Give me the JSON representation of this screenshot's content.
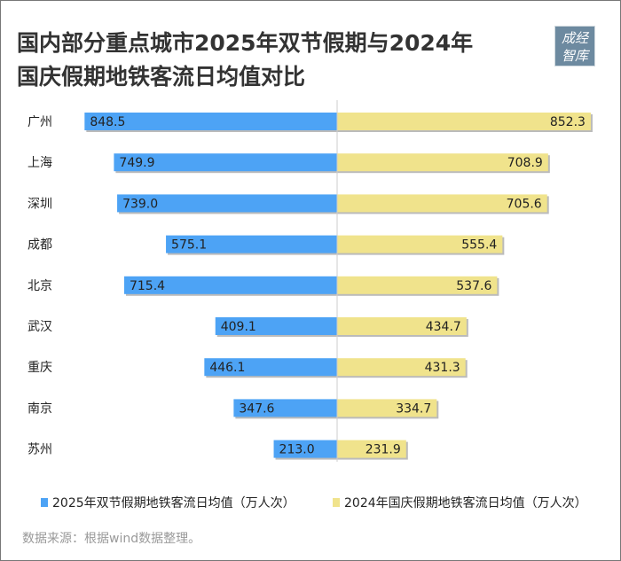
{
  "title_line1": "国内部分重点城市2025年双节假期与2024年",
  "title_line2": "国庆假期地铁客流日均值对比",
  "logo_text": "成经智库",
  "source": "数据来源：根据wind数据整理。",
  "chart_data": {
    "type": "bar",
    "orientation": "horizontal-diverging",
    "categories": [
      "广州",
      "上海",
      "深圳",
      "成都",
      "北京",
      "武汉",
      "重庆",
      "南京",
      "苏州"
    ],
    "series": [
      {
        "name": "2025年双节假期地铁客流日均值（万人次）",
        "color": "#4da3f5",
        "values": [
          848.5,
          749.9,
          739.0,
          575.1,
          715.4,
          409.1,
          446.1,
          347.6,
          213.0
        ]
      },
      {
        "name": "2024年国庆假期地铁客流日均值（万人次）",
        "color": "#f0e38c",
        "values": [
          852.3,
          708.9,
          705.6,
          555.4,
          537.6,
          434.7,
          431.3,
          334.7,
          231.9
        ]
      }
    ],
    "legend": "bottom",
    "grid": false
  }
}
